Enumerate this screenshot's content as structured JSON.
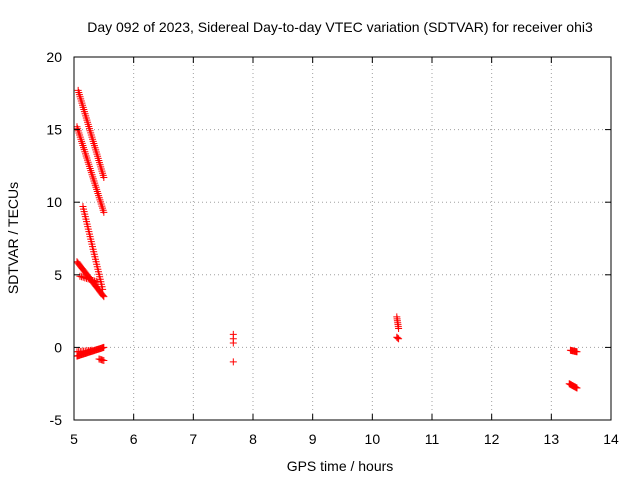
{
  "chart_data": {
    "type": "scatter",
    "title": "Day 092 of 2023, Sidereal Day-to-day VTEC variation (SDTVAR) for receiver ohi3",
    "xlabel": "GPS time / hours",
    "ylabel": "SDTVAR / TECUs",
    "xlim": [
      5,
      14
    ],
    "ylim": [
      -5,
      20
    ],
    "xticks": [
      "5",
      "6",
      "7",
      "8",
      "9",
      "10",
      "11",
      "12",
      "13",
      "14"
    ],
    "yticks": [
      "-5",
      "0",
      "5",
      "10",
      "15",
      "20"
    ],
    "grid": true,
    "marker": "+",
    "series": [
      {
        "name": "SDTVAR",
        "color": "#ff0000",
        "segments": [
          {
            "x0": 5.07,
            "y0": 17.7,
            "x1": 5.5,
            "y1": 11.7,
            "n": 42
          },
          {
            "x0": 5.05,
            "y0": 15.2,
            "x1": 5.5,
            "y1": 9.3,
            "n": 42
          },
          {
            "x0": 5.15,
            "y0": 9.7,
            "x1": 5.48,
            "y1": 4.0,
            "n": 34
          },
          {
            "x0": 5.05,
            "y0": 5.9,
            "x1": 5.5,
            "y1": 3.5,
            "n": 32
          },
          {
            "x0": 5.1,
            "y0": 4.9,
            "x1": 5.4,
            "y1": 4.5,
            "n": 12
          },
          {
            "x0": 5.05,
            "y0": -0.6,
            "x1": 5.5,
            "y1": 0.0,
            "n": 34
          },
          {
            "x0": 5.05,
            "y0": -0.3,
            "x1": 5.3,
            "y1": -0.2,
            "n": 10
          },
          {
            "x0": 5.42,
            "y0": -0.8,
            "x1": 5.5,
            "y1": -0.9,
            "n": 5
          },
          {
            "x0": 7.67,
            "y0": 0.9,
            "x1": 7.67,
            "y1": 0.3,
            "n": 3
          },
          {
            "x0": 7.67,
            "y0": -1.0,
            "x1": 7.67,
            "y1": -1.0,
            "n": 1
          },
          {
            "x0": 10.41,
            "y0": 2.1,
            "x1": 10.44,
            "y1": 1.3,
            "n": 7
          },
          {
            "x0": 10.41,
            "y0": 0.7,
            "x1": 10.44,
            "y1": 0.6,
            "n": 3
          },
          {
            "x0": 13.32,
            "y0": -0.2,
            "x1": 13.43,
            "y1": -0.3,
            "n": 9
          },
          {
            "x0": 13.3,
            "y0": -2.5,
            "x1": 13.43,
            "y1": -2.8,
            "n": 11
          }
        ]
      }
    ]
  }
}
